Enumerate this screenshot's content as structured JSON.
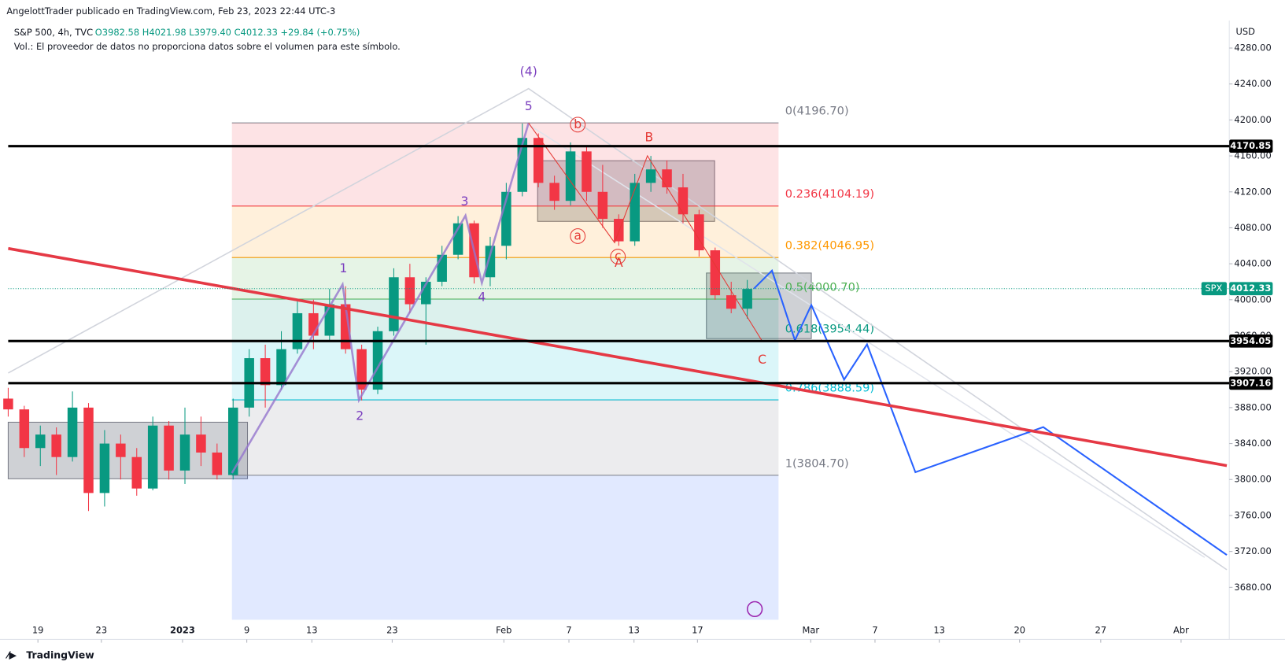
{
  "chart_data": {
    "type": "candlestick",
    "header": "AngelottTrader publicado en TradingView.com, Feb 23, 2023 22:44 UTC-3",
    "symbol": "S&P 500, 4h, TVC",
    "ohlc": "O3982.58 H4021.98 L3979.40 C4012.33 +29.84 (+0.75%)",
    "volume_note": "Vol.: El proveedor de datos no proporciona datos sobre el volumen para este símbolo.",
    "currency": "USD",
    "footer": "TradingView",
    "up_color": "#089981",
    "down_color": "#f23645",
    "xlim": [
      0,
      152
    ],
    "ylim": [
      3644,
      4306
    ],
    "xticks": [
      {
        "value": 3.7,
        "label": "19"
      },
      {
        "value": 11.6,
        "label": "23"
      },
      {
        "value": 21.7,
        "label": "2023"
      },
      {
        "value": 29.7,
        "label": "9"
      },
      {
        "value": 37.8,
        "label": "13"
      },
      {
        "value": 47.8,
        "label": "23"
      },
      {
        "value": 61.7,
        "label": "Feb"
      },
      {
        "value": 69.8,
        "label": "7"
      },
      {
        "value": 77.9,
        "label": "13"
      },
      {
        "value": 85.8,
        "label": "17"
      },
      {
        "value": 99.9,
        "label": "Mar"
      },
      {
        "value": 107.9,
        "label": "7"
      },
      {
        "value": 115.9,
        "label": "13"
      },
      {
        "value": 125.9,
        "label": "20"
      },
      {
        "value": 136,
        "label": "27"
      },
      {
        "value": 146,
        "label": "Abr"
      }
    ],
    "yticks": [
      {
        "value": 4280,
        "label": "4280.00"
      },
      {
        "value": 4240,
        "label": "4240.00"
      },
      {
        "value": 4200,
        "label": "4200.00"
      },
      {
        "value": 4160,
        "label": "4160.00"
      },
      {
        "value": 4120,
        "label": "4120.00"
      },
      {
        "value": 4080,
        "label": "4080.00"
      },
      {
        "value": 4040,
        "label": "4040.00"
      },
      {
        "value": 4000,
        "label": "4000.00"
      },
      {
        "value": 3960,
        "label": "3960.00"
      },
      {
        "value": 3920,
        "label": "3920.00"
      },
      {
        "value": 3880,
        "label": "3880.00"
      },
      {
        "value": 3840,
        "label": "3840.00"
      },
      {
        "value": 3800,
        "label": "3800.00"
      },
      {
        "value": 3760,
        "label": "3760.00"
      },
      {
        "value": 3720,
        "label": "3720.00"
      },
      {
        "value": 3680,
        "label": "3680.00"
      }
    ],
    "candles": [
      {
        "x": 0,
        "open": 3890,
        "high": 3902,
        "low": 3870,
        "close": 3878
      },
      {
        "x": 2,
        "open": 3878,
        "high": 3882,
        "low": 3825,
        "close": 3835
      },
      {
        "x": 4,
        "open": 3835,
        "high": 3860,
        "low": 3815,
        "close": 3850
      },
      {
        "x": 6,
        "open": 3850,
        "high": 3858,
        "low": 3805,
        "close": 3825
      },
      {
        "x": 8,
        "open": 3825,
        "high": 3898,
        "low": 3820,
        "close": 3880
      },
      {
        "x": 10,
        "open": 3880,
        "high": 3885,
        "low": 3765,
        "close": 3785
      },
      {
        "x": 12,
        "open": 3785,
        "high": 3855,
        "low": 3770,
        "close": 3840
      },
      {
        "x": 14,
        "open": 3840,
        "high": 3850,
        "low": 3800,
        "close": 3825
      },
      {
        "x": 16,
        "open": 3825,
        "high": 3835,
        "low": 3782,
        "close": 3790
      },
      {
        "x": 18,
        "open": 3790,
        "high": 3870,
        "low": 3788,
        "close": 3860
      },
      {
        "x": 20,
        "open": 3860,
        "high": 3865,
        "low": 3800,
        "close": 3810
      },
      {
        "x": 22,
        "open": 3810,
        "high": 3880,
        "low": 3795,
        "close": 3850
      },
      {
        "x": 24,
        "open": 3850,
        "high": 3870,
        "low": 3815,
        "close": 3830
      },
      {
        "x": 26,
        "open": 3830,
        "high": 3840,
        "low": 3800,
        "close": 3805
      },
      {
        "x": 28,
        "open": 3805,
        "high": 3890,
        "low": 3800,
        "close": 3880
      },
      {
        "x": 30,
        "open": 3880,
        "high": 3945,
        "low": 3870,
        "close": 3935
      },
      {
        "x": 32,
        "open": 3935,
        "high": 3950,
        "low": 3880,
        "close": 3905
      },
      {
        "x": 34,
        "open": 3905,
        "high": 3965,
        "low": 3900,
        "close": 3945
      },
      {
        "x": 36,
        "open": 3945,
        "high": 3998,
        "low": 3940,
        "close": 3985
      },
      {
        "x": 38,
        "open": 3985,
        "high": 4000,
        "low": 3945,
        "close": 3960
      },
      {
        "x": 40,
        "open": 3960,
        "high": 4012,
        "low": 3955,
        "close": 3995
      },
      {
        "x": 42,
        "open": 3995,
        "high": 4015,
        "low": 3940,
        "close": 3945
      },
      {
        "x": 44,
        "open": 3945,
        "high": 3950,
        "low": 3888,
        "close": 3900
      },
      {
        "x": 46,
        "open": 3900,
        "high": 3970,
        "low": 3895,
        "close": 3965
      },
      {
        "x": 48,
        "open": 3965,
        "high": 4035,
        "low": 3960,
        "close": 4025
      },
      {
        "x": 50,
        "open": 4025,
        "high": 4040,
        "low": 3985,
        "close": 3995
      },
      {
        "x": 52,
        "open": 3995,
        "high": 4025,
        "low": 3950,
        "close": 4020
      },
      {
        "x": 54,
        "open": 4020,
        "high": 4060,
        "low": 4015,
        "close": 4050
      },
      {
        "x": 56,
        "open": 4050,
        "high": 4093,
        "low": 4045,
        "close": 4085
      },
      {
        "x": 58,
        "open": 4085,
        "high": 4088,
        "low": 4018,
        "close": 4025
      },
      {
        "x": 60,
        "open": 4025,
        "high": 4070,
        "low": 4015,
        "close": 4060
      },
      {
        "x": 62,
        "open": 4060,
        "high": 4130,
        "low": 4045,
        "close": 4120
      },
      {
        "x": 64,
        "open": 4120,
        "high": 4196,
        "low": 4115,
        "close": 4180
      },
      {
        "x": 66,
        "open": 4180,
        "high": 4185,
        "low": 4125,
        "close": 4130
      },
      {
        "x": 68,
        "open": 4130,
        "high": 4138,
        "low": 4100,
        "close": 4110
      },
      {
        "x": 70,
        "open": 4110,
        "high": 4175,
        "low": 4105,
        "close": 4165
      },
      {
        "x": 72,
        "open": 4165,
        "high": 4170,
        "low": 4110,
        "close": 4120
      },
      {
        "x": 74,
        "open": 4120,
        "high": 4150,
        "low": 4080,
        "close": 4090
      },
      {
        "x": 76,
        "open": 4090,
        "high": 4095,
        "low": 4060,
        "close": 4065
      },
      {
        "x": 78,
        "open": 4065,
        "high": 4140,
        "low": 4060,
        "close": 4130
      },
      {
        "x": 80,
        "open": 4130,
        "high": 4160,
        "low": 4120,
        "close": 4145
      },
      {
        "x": 82,
        "open": 4145,
        "high": 4155,
        "low": 4118,
        "close": 4125
      },
      {
        "x": 84,
        "open": 4125,
        "high": 4140,
        "low": 4085,
        "close": 4095
      },
      {
        "x": 86,
        "open": 4095,
        "high": 4100,
        "low": 4048,
        "close": 4055
      },
      {
        "x": 88,
        "open": 4055,
        "high": 4058,
        "low": 4000,
        "close": 4005
      },
      {
        "x": 90,
        "open": 4005,
        "high": 4020,
        "low": 3985,
        "close": 3990
      },
      {
        "x": 92,
        "open": 3990,
        "high": 4022,
        "low": 3979,
        "close": 4012
      }
    ],
    "fib_levels": [
      {
        "value": 4196.7,
        "label": "0(4196.70)",
        "color": "#787b86"
      },
      {
        "value": 4104.19,
        "label": "0.236(4104.19)",
        "color": "#f23645"
      },
      {
        "value": 4046.95,
        "label": "0.382(4046.95)",
        "color": "#ff9800"
      },
      {
        "value": 4000.7,
        "label": "0.5(4000.70)",
        "color": "#4caf50"
      },
      {
        "value": 3954.44,
        "label": "0.618(3954.44)",
        "color": "#089981"
      },
      {
        "value": 3888.59,
        "label": "0.786(3888.59)",
        "color": "#00bcd4"
      },
      {
        "value": 3804.7,
        "label": "1(3804.70)",
        "color": "#787b86"
      }
    ],
    "levels": [
      4170.85,
      3954.05,
      3907.16
    ],
    "last_price": {
      "label": "SPX",
      "value": 4012.33,
      "color": "#089981"
    },
    "annotations": [
      {
        "text": "(4)",
        "color": "#7b3fbf"
      },
      {
        "text": "5",
        "color": "#7b3fbf"
      },
      {
        "text": "1",
        "color": "#7b3fbf"
      },
      {
        "text": "2",
        "color": "#7b3fbf"
      },
      {
        "text": "3",
        "color": "#7b3fbf"
      },
      {
        "text": "4",
        "color": "#7b3fbf"
      },
      {
        "text": "a",
        "color": "#e53935"
      },
      {
        "text": "b",
        "color": "#e53935"
      },
      {
        "text": "c",
        "color": "#e53935"
      },
      {
        "text": "A",
        "color": "#e53935"
      },
      {
        "text": "B",
        "color": "#e53935"
      },
      {
        "text": "C",
        "color": "#e53935"
      }
    ]
  }
}
